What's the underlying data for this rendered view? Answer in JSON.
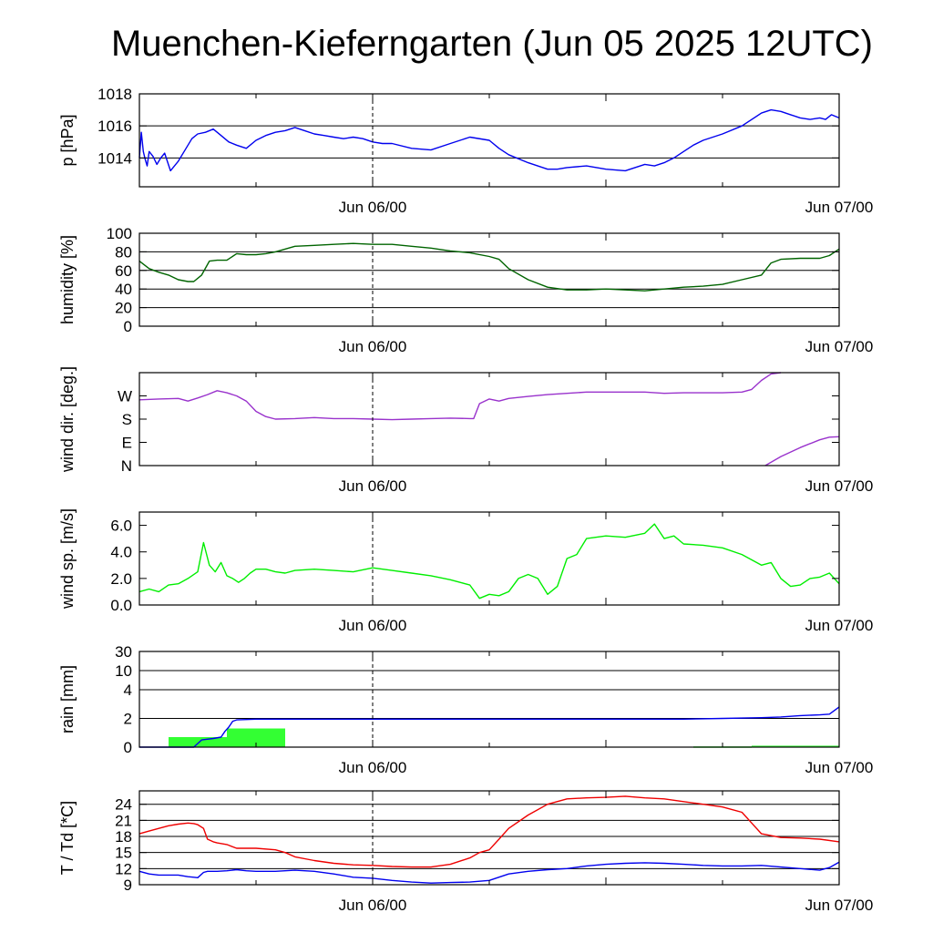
{
  "chart_data": {
    "title": "Muenchen-Kieferngarten (Jun 05 2025 12UTC)",
    "x_tick_labels": [
      "Jun 06/00",
      "Jun 07/00"
    ],
    "x_range_hours": [
      0,
      36
    ],
    "x_marker_hours": 12,
    "panels": [
      {
        "id": "pressure",
        "type": "line",
        "ylabel": "p [hPa]",
        "ylim": [
          1012.2,
          1018
        ],
        "grid": [
          1014,
          1016,
          1018
        ],
        "yticks": [
          {
            "v": 1014,
            "label": "1014"
          },
          {
            "v": 1016,
            "label": "1016"
          },
          {
            "v": 1018,
            "label": "1018"
          }
        ],
        "series": [
          {
            "color": "#0000ee",
            "x": [
              0,
              0.1,
              0.2,
              0.3,
              0.4,
              0.5,
              0.7,
              0.9,
              1.1,
              1.3,
              1.6,
              2.0,
              2.4,
              2.7,
              3.0,
              3.4,
              3.8,
              4.2,
              4.6,
              5.0,
              5.5,
              6.0,
              6.5,
              7.0,
              7.5,
              8.0,
              8.5,
              9.0,
              9.5,
              10.0,
              10.5,
              11.0,
              11.5,
              12.0,
              12.5,
              13.0,
              14.0,
              15.0,
              16.0,
              17.0,
              18.0,
              18.5,
              19.0,
              20.0,
              21.0,
              21.5,
              22.0,
              23.0,
              24.0,
              25.0,
              26.0,
              26.5,
              27.0,
              27.5,
              28.0,
              28.5,
              29.0,
              30.0,
              31.0,
              32.0,
              32.5,
              33.0,
              33.5,
              34.0,
              34.5,
              35.0,
              35.3,
              35.6,
              36.0
            ],
            "y": [
              1014.0,
              1015.6,
              1014.4,
              1013.9,
              1013.5,
              1014.4,
              1014.1,
              1013.6,
              1014.0,
              1014.3,
              1013.2,
              1013.8,
              1014.6,
              1015.2,
              1015.5,
              1015.6,
              1015.8,
              1015.4,
              1015.0,
              1014.8,
              1014.6,
              1015.1,
              1015.4,
              1015.6,
              1015.7,
              1015.9,
              1015.7,
              1015.5,
              1015.4,
              1015.3,
              1015.2,
              1015.3,
              1015.2,
              1015.0,
              1014.9,
              1014.9,
              1014.6,
              1014.5,
              1014.9,
              1015.3,
              1015.1,
              1014.6,
              1014.2,
              1013.7,
              1013.3,
              1013.3,
              1013.4,
              1013.5,
              1013.3,
              1013.2,
              1013.6,
              1013.5,
              1013.7,
              1014.0,
              1014.4,
              1014.8,
              1015.1,
              1015.5,
              1016.0,
              1016.8,
              1017.0,
              1016.9,
              1016.7,
              1016.5,
              1016.4,
              1016.5,
              1016.4,
              1016.7,
              1016.5
            ]
          }
        ]
      },
      {
        "id": "humidity",
        "type": "line",
        "ylabel": "humidity [%]",
        "ylim": [
          0,
          100
        ],
        "grid": [
          20,
          40,
          60,
          80,
          100
        ],
        "yticks": [
          {
            "v": 0,
            "label": "0"
          },
          {
            "v": 20,
            "label": "20"
          },
          {
            "v": 40,
            "label": "40"
          },
          {
            "v": 60,
            "label": "60"
          },
          {
            "v": 80,
            "label": "80"
          },
          {
            "v": 100,
            "label": "100"
          }
        ],
        "series": [
          {
            "color": "#006400",
            "x": [
              0,
              0.5,
              1.0,
              1.5,
              2.0,
              2.5,
              2.8,
              3.2,
              3.6,
              4.0,
              4.5,
              5.0,
              5.5,
              6.0,
              6.5,
              7.0,
              8.0,
              9.0,
              10.0,
              11.0,
              12.0,
              13.0,
              14.0,
              15.0,
              16.0,
              17.0,
              18.0,
              18.5,
              19.0,
              20.0,
              21.0,
              22.0,
              23.0,
              24.0,
              25.0,
              26.0,
              27.0,
              28.0,
              29.0,
              30.0,
              31.0,
              32.0,
              32.5,
              33.0,
              34.0,
              35.0,
              35.5,
              36.0
            ],
            "y": [
              70,
              62,
              58,
              55,
              50,
              48,
              48,
              55,
              70,
              71,
              71,
              78,
              77,
              77,
              78,
              80,
              86,
              87,
              88,
              89,
              88,
              88,
              86,
              84,
              81,
              79,
              75,
              72,
              62,
              50,
              42,
              39,
              39,
              40,
              39,
              38,
              40,
              42,
              43,
              45,
              50,
              55,
              68,
              72,
              73,
              73,
              76,
              83
            ]
          }
        ]
      },
      {
        "id": "wind_direction",
        "type": "line",
        "ylabel": "wind dir. [deg.]",
        "ylim": [
          0,
          360
        ],
        "grid": [],
        "yticks": [
          {
            "v": 0,
            "label": "N"
          },
          {
            "v": 90,
            "label": "E"
          },
          {
            "v": 180,
            "label": "S"
          },
          {
            "v": 270,
            "label": "W"
          }
        ],
        "series": [
          {
            "color": "#9932cc",
            "x": [
              0,
              1,
              2,
              2.5,
              3.0,
              3.5,
              4.0,
              4.5,
              5.0,
              5.5,
              6.0,
              6.5,
              7.0,
              8.0,
              9.0,
              10.0,
              11.0,
              12.0,
              13.0,
              14.0,
              15.0,
              16.0,
              17.0,
              17.2,
              17.5,
              18.0,
              18.5,
              19.0,
              20.0,
              21.0,
              22.0,
              23.0,
              24.0,
              25.0,
              26.0,
              27.0,
              28.0,
              29.0,
              30.0,
              31.0,
              31.5,
              32.0,
              32.5,
              33.0
            ],
            "y": [
              255,
              258,
              260,
              250,
              262,
              275,
              290,
              282,
              270,
              250,
              210,
              190,
              180,
              182,
              186,
              182,
              182,
              180,
              178,
              180,
              182,
              184,
              182,
              182,
              240,
              258,
              250,
              260,
              268,
              275,
              280,
              285,
              285,
              285,
              285,
              280,
              282,
              282,
              282,
              285,
              295,
              330,
              355,
              365
            ]
          },
          {
            "color": "#9932cc",
            "x": [
              32.2,
              33.0,
              34.0,
              35.0,
              35.5,
              36.0
            ],
            "y": [
              0,
              35,
              70,
              100,
              110,
              112
            ]
          }
        ]
      },
      {
        "id": "wind_speed",
        "type": "line",
        "ylabel": "wind sp. [m/s]",
        "ylim": [
          0,
          7
        ],
        "grid": [],
        "yticks": [
          {
            "v": 0,
            "label": "0.0"
          },
          {
            "v": 2,
            "label": "2.0"
          },
          {
            "v": 4,
            "label": "4.0"
          },
          {
            "v": 6,
            "label": "6.0"
          }
        ],
        "series": [
          {
            "color": "#00ee00",
            "x": [
              0,
              0.5,
              1.0,
              1.5,
              2.0,
              2.5,
              3.0,
              3.3,
              3.6,
              3.9,
              4.2,
              4.5,
              4.8,
              5.1,
              5.4,
              5.7,
              6.0,
              6.5,
              7.0,
              7.5,
              8.0,
              9.0,
              10.0,
              11.0,
              12.0,
              13.0,
              14.0,
              15.0,
              16.0,
              16.5,
              17.0,
              17.5,
              18.0,
              18.5,
              19.0,
              19.5,
              20.0,
              20.5,
              21.0,
              21.5,
              22.0,
              22.5,
              23.0,
              24.0,
              25.0,
              26.0,
              26.5,
              27.0,
              27.5,
              28.0,
              29.0,
              30.0,
              31.0,
              32.0,
              32.5,
              33.0,
              33.5,
              34.0,
              34.5,
              35.0,
              35.5,
              36.0
            ],
            "y": [
              1.0,
              1.2,
              1.0,
              1.5,
              1.6,
              2.0,
              2.5,
              4.7,
              3.0,
              2.5,
              3.2,
              2.2,
              2.0,
              1.7,
              2.0,
              2.4,
              2.7,
              2.7,
              2.5,
              2.4,
              2.6,
              2.7,
              2.6,
              2.5,
              2.8,
              2.6,
              2.4,
              2.2,
              1.9,
              1.7,
              1.5,
              0.5,
              0.8,
              0.7,
              1.0,
              2.0,
              2.3,
              2.0,
              0.8,
              1.4,
              3.5,
              3.8,
              5.0,
              5.2,
              5.1,
              5.4,
              6.1,
              5.0,
              5.2,
              4.6,
              4.5,
              4.3,
              3.8,
              3.0,
              3.2,
              2.0,
              1.4,
              1.5,
              2.0,
              2.1,
              2.4,
              1.6
            ]
          }
        ]
      },
      {
        "id": "rain",
        "type": "bar+line",
        "ylabel": "rain [mm]",
        "ylim": [
          0,
          30
        ],
        "grid": [
          2,
          4,
          10,
          30
        ],
        "yticks": [
          {
            "v": 0,
            "label": "0"
          },
          {
            "v": 2,
            "label": "2"
          },
          {
            "v": 4,
            "label": "4"
          },
          {
            "v": 10,
            "label": "10"
          },
          {
            "v": 30,
            "label": "30"
          }
        ],
        "bars": {
          "color": "#33ff33",
          "items": [
            {
              "x0": 1.5,
              "x1": 4.5,
              "value": 0.7
            },
            {
              "x0": 4.5,
              "x1": 7.5,
              "value": 1.3
            },
            {
              "x0": 28.5,
              "x1": 31.5,
              "value": 0.05
            },
            {
              "x0": 31.5,
              "x1": 36.0,
              "value": 0.1
            }
          ]
        },
        "series": [
          {
            "color": "#0000ee",
            "x": [
              0,
              1.5,
              2.8,
              3.2,
              3.8,
              4.2,
              4.4,
              4.6,
              4.8,
              5.0,
              6,
              8,
              12,
              16,
              20,
              24,
              28,
              30,
              32,
              33,
              34,
              35,
              35.5,
              36
            ],
            "y": [
              0,
              0,
              0,
              0.5,
              0.6,
              0.7,
              1.1,
              1.4,
              1.8,
              1.9,
              1.95,
              1.95,
              1.95,
              1.95,
              1.95,
              1.95,
              1.95,
              2.0,
              2.05,
              2.1,
              2.2,
              2.25,
              2.3,
              2.8
            ]
          }
        ]
      },
      {
        "id": "temperature",
        "type": "line",
        "ylabel": "T / Td [*C]",
        "ylim": [
          9,
          26.5
        ],
        "grid": [
          12,
          15,
          18,
          21,
          24
        ],
        "yticks": [
          {
            "v": 9,
            "label": "9"
          },
          {
            "v": 12,
            "label": "12"
          },
          {
            "v": 15,
            "label": "15"
          },
          {
            "v": 18,
            "label": "18"
          },
          {
            "v": 21,
            "label": "21"
          },
          {
            "v": 24,
            "label": "24"
          }
        ],
        "series": [
          {
            "color": "#ee0000",
            "x": [
              0,
              0.5,
              1.0,
              1.5,
              2.0,
              2.5,
              2.8,
              3.0,
              3.3,
              3.5,
              3.8,
              4.0,
              4.5,
              5.0,
              5.5,
              6.0,
              7.0,
              7.5,
              8.0,
              9.0,
              10.0,
              11.0,
              12.0,
              13.0,
              14.0,
              15.0,
              16.0,
              17.0,
              17.5,
              18.0,
              18.5,
              19.0,
              20.0,
              21.0,
              22.0,
              23.0,
              24.0,
              25.0,
              26.0,
              27.0,
              28.0,
              29.0,
              30.0,
              31.0,
              31.5,
              32.0,
              33.0,
              34.0,
              35.0,
              36.0
            ],
            "y": [
              18.5,
              19.0,
              19.5,
              20.0,
              20.3,
              20.5,
              20.4,
              20.2,
              19.5,
              17.5,
              17.0,
              16.8,
              16.5,
              15.8,
              15.8,
              15.8,
              15.5,
              15.0,
              14.2,
              13.5,
              13.0,
              12.7,
              12.6,
              12.4,
              12.3,
              12.3,
              12.8,
              14.0,
              15.0,
              15.5,
              17.5,
              19.5,
              22.0,
              24.0,
              25.0,
              25.2,
              25.3,
              25.5,
              25.2,
              25.0,
              24.5,
              24.0,
              23.5,
              22.5,
              20.5,
              18.5,
              17.8,
              17.7,
              17.5,
              17.0
            ]
          },
          {
            "color": "#0000ee",
            "x": [
              0,
              0.5,
              1.0,
              1.5,
              2.0,
              2.5,
              2.8,
              3.0,
              3.3,
              3.5,
              4.0,
              4.5,
              5.0,
              5.5,
              6.0,
              7.0,
              8.0,
              9.0,
              10.0,
              11.0,
              12.0,
              13.0,
              14.0,
              15.0,
              16.0,
              17.0,
              18.0,
              19.0,
              20.0,
              21.0,
              22.0,
              23.0,
              24.0,
              25.0,
              26.0,
              27.0,
              28.0,
              29.0,
              30.0,
              31.0,
              32.0,
              33.0,
              34.0,
              35.0,
              35.5,
              36.0
            ],
            "y": [
              11.5,
              11.0,
              10.8,
              10.8,
              10.8,
              10.5,
              10.4,
              10.3,
              11.3,
              11.5,
              11.5,
              11.6,
              11.8,
              11.6,
              11.5,
              11.5,
              11.7,
              11.5,
              11.0,
              10.4,
              10.2,
              9.8,
              9.5,
              9.3,
              9.4,
              9.5,
              9.8,
              11.0,
              11.5,
              11.8,
              12.0,
              12.5,
              12.8,
              13.0,
              13.1,
              13.0,
              12.8,
              12.6,
              12.5,
              12.5,
              12.6,
              12.3,
              12.0,
              11.7,
              12.2,
              13.2
            ]
          }
        ]
      }
    ]
  }
}
